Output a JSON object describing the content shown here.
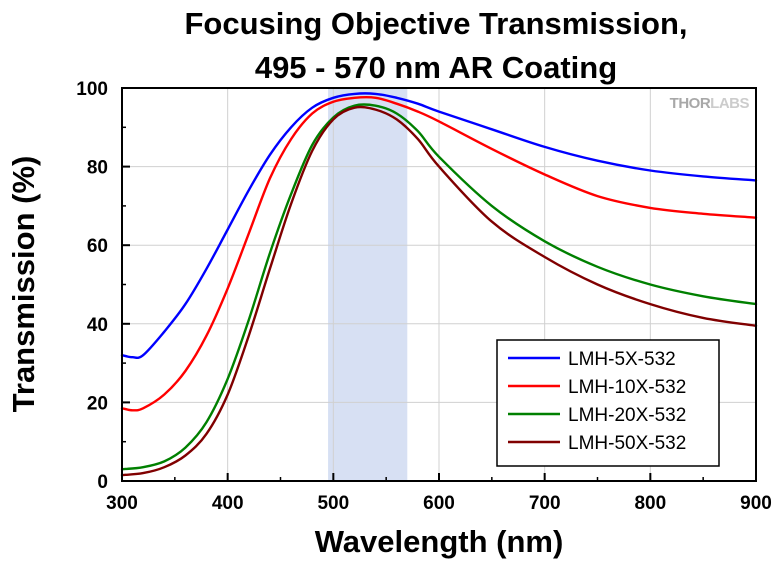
{
  "chart_data": {
    "type": "line",
    "title_lines": [
      "Focusing Objective Transmission,",
      "495 - 570 nm AR Coating"
    ],
    "xlabel": "Wavelength (nm)",
    "ylabel": "Transmission (%)",
    "xlim": [
      300,
      900
    ],
    "ylim": [
      0,
      100
    ],
    "xticks": [
      300,
      400,
      500,
      600,
      700,
      800,
      900
    ],
    "yticks": [
      0,
      20,
      40,
      60,
      80,
      100
    ],
    "grid": true,
    "legend_position": "bottom-right",
    "watermark": {
      "part1": "THOR",
      "part2": "LABS"
    },
    "shaded_band": {
      "x_start": 495,
      "x_end": 570,
      "color": "#d7e0f3"
    },
    "series": [
      {
        "name": "LMH-5X-532",
        "color": "#0000ff",
        "points": [
          [
            300,
            32
          ],
          [
            310,
            31.5
          ],
          [
            320,
            32
          ],
          [
            340,
            38
          ],
          [
            360,
            45
          ],
          [
            380,
            54
          ],
          [
            400,
            64
          ],
          [
            420,
            74
          ],
          [
            440,
            83
          ],
          [
            460,
            90
          ],
          [
            480,
            95
          ],
          [
            500,
            97.5
          ],
          [
            520,
            98.5
          ],
          [
            540,
            98.5
          ],
          [
            560,
            97.5
          ],
          [
            580,
            96
          ],
          [
            600,
            94
          ],
          [
            650,
            89.5
          ],
          [
            700,
            85
          ],
          [
            750,
            81.5
          ],
          [
            800,
            79
          ],
          [
            850,
            77.5
          ],
          [
            900,
            76.5
          ]
        ]
      },
      {
        "name": "LMH-10X-532",
        "color": "#ff0000",
        "points": [
          [
            300,
            18.5
          ],
          [
            310,
            18
          ],
          [
            320,
            18.5
          ],
          [
            340,
            22
          ],
          [
            360,
            28
          ],
          [
            380,
            37
          ],
          [
            400,
            49
          ],
          [
            420,
            63
          ],
          [
            440,
            77
          ],
          [
            460,
            87
          ],
          [
            480,
            93.5
          ],
          [
            500,
            96.5
          ],
          [
            520,
            97.5
          ],
          [
            540,
            97.5
          ],
          [
            560,
            96
          ],
          [
            580,
            94
          ],
          [
            600,
            91.5
          ],
          [
            650,
            84.5
          ],
          [
            700,
            78
          ],
          [
            750,
            72.5
          ],
          [
            800,
            69.5
          ],
          [
            850,
            68
          ],
          [
            900,
            67
          ]
        ]
      },
      {
        "name": "LMH-20X-532",
        "color": "#008000",
        "points": [
          [
            300,
            3
          ],
          [
            320,
            3.5
          ],
          [
            340,
            5
          ],
          [
            360,
            8.5
          ],
          [
            380,
            15
          ],
          [
            400,
            26
          ],
          [
            420,
            41
          ],
          [
            440,
            58
          ],
          [
            460,
            73
          ],
          [
            480,
            85.5
          ],
          [
            500,
            92.5
          ],
          [
            520,
            95.5
          ],
          [
            540,
            95.5
          ],
          [
            560,
            93.5
          ],
          [
            580,
            89
          ],
          [
            600,
            82.5
          ],
          [
            650,
            70
          ],
          [
            700,
            61
          ],
          [
            750,
            54.5
          ],
          [
            800,
            50
          ],
          [
            850,
            47
          ],
          [
            900,
            45
          ]
        ]
      },
      {
        "name": "LMH-50X-532",
        "color": "#800000",
        "points": [
          [
            300,
            1.5
          ],
          [
            320,
            2
          ],
          [
            340,
            3.5
          ],
          [
            360,
            6.5
          ],
          [
            380,
            12
          ],
          [
            400,
            22
          ],
          [
            420,
            37
          ],
          [
            440,
            54
          ],
          [
            460,
            70.5
          ],
          [
            480,
            84
          ],
          [
            500,
            92
          ],
          [
            520,
            95
          ],
          [
            540,
            94.5
          ],
          [
            560,
            92
          ],
          [
            580,
            87
          ],
          [
            600,
            80
          ],
          [
            650,
            66
          ],
          [
            700,
            57
          ],
          [
            750,
            50
          ],
          [
            800,
            45
          ],
          [
            850,
            41.5
          ],
          [
            900,
            39.5
          ]
        ]
      }
    ]
  }
}
